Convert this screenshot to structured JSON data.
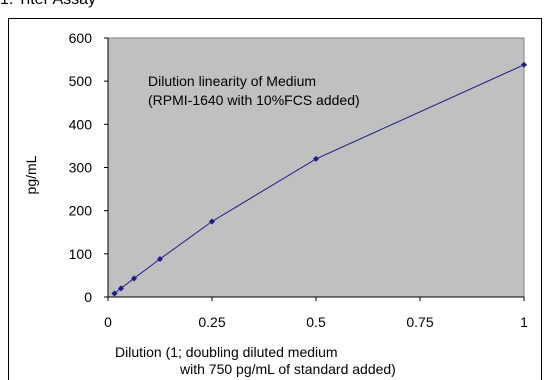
{
  "page": {
    "heading": "1. Titer Assay"
  },
  "chart_data": {
    "type": "line",
    "title": "",
    "annotation": [
      "Dilution linearity of Medium",
      "(RPMI-1640 with 10%FCS added)"
    ],
    "xlabel": [
      "Dilution (1; doubling diluted medium",
      "with 750 pg/mL of standard added)"
    ],
    "ylabel": "pg/mL",
    "xlim": [
      0,
      1
    ],
    "ylim": [
      0,
      600
    ],
    "x_ticks": [
      0,
      0.25,
      0.5,
      0.75,
      1
    ],
    "x_tick_labels": [
      "0",
      "0.25",
      "0.5",
      "0.75",
      "1"
    ],
    "y_ticks": [
      0,
      100,
      200,
      300,
      400,
      500,
      600
    ],
    "y_tick_labels": [
      "0",
      "100",
      "200",
      "300",
      "400",
      "500",
      "600"
    ],
    "grid": false,
    "legend": "none",
    "plot_background": "#c0c0c0",
    "series": [
      {
        "color": "#1a1a8c",
        "marker": "diamond",
        "x": [
          0.015625,
          0.03125,
          0.0625,
          0.125,
          0.25,
          0.5,
          1
        ],
        "y": [
          8,
          20,
          43,
          88,
          175,
          320,
          538
        ]
      }
    ]
  }
}
